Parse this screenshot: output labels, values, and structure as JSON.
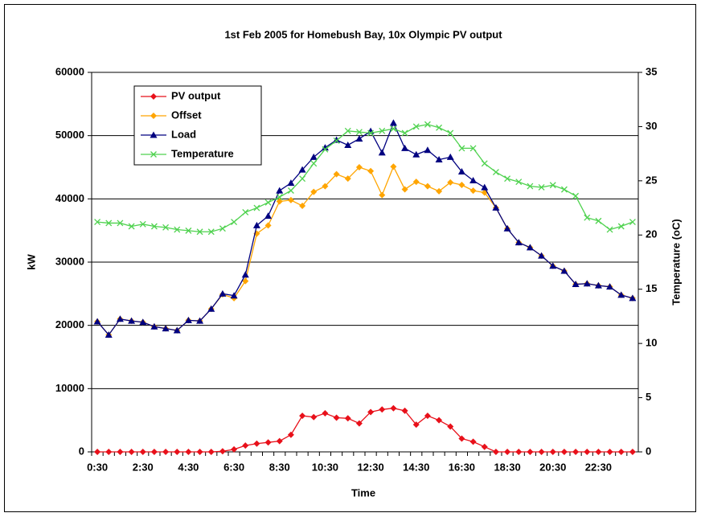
{
  "chart_data": {
    "type": "line",
    "title": "1st Feb 2005 for Homebush Bay, 10x Olympic PV output",
    "x_label": "Time",
    "y_label": "kW",
    "y2_label": "Temperature (oC)",
    "categories": [
      "0:30",
      null,
      null,
      null,
      "2:30",
      null,
      null,
      null,
      "4:30",
      null,
      null,
      null,
      "6:30",
      null,
      null,
      null,
      "8:30",
      null,
      null,
      null,
      "10:30",
      null,
      null,
      null,
      "12:30",
      null,
      null,
      null,
      "14:30",
      null,
      null,
      null,
      "16:30",
      null,
      null,
      null,
      "18:30",
      null,
      null,
      null,
      "20:30",
      null,
      null,
      null,
      "22:30",
      null,
      null,
      null
    ],
    "ylim": [
      0,
      60000
    ],
    "yticks": [
      0,
      10000,
      20000,
      30000,
      40000,
      50000,
      60000
    ],
    "y2lim": [
      0,
      35
    ],
    "y2ticks": [
      0,
      5,
      10,
      15,
      20,
      25,
      30,
      35
    ],
    "grid": true,
    "legend": "upper left",
    "series": [
      {
        "name": "PV output",
        "color": "#e8101a",
        "marker": "diamond",
        "values": [
          0,
          0,
          0,
          0,
          0,
          0,
          0,
          0,
          0,
          0,
          0,
          100,
          400,
          1000,
          1300,
          1500,
          1700,
          2700,
          5700,
          5500,
          6100,
          5400,
          5300,
          4500,
          6300,
          6700,
          6900,
          6500,
          4300,
          5700,
          5000,
          4000,
          2100,
          1600,
          800,
          0,
          0,
          0,
          0,
          0,
          0,
          0,
          0,
          0,
          0,
          0,
          0,
          0
        ]
      },
      {
        "name": "Offset",
        "color": "#ffa500",
        "marker": "diamond",
        "values": [
          20600,
          18500,
          21000,
          20700,
          20500,
          19800,
          19500,
          19200,
          20800,
          20700,
          22600,
          24900,
          24300,
          27000,
          34500,
          35800,
          39600,
          39800,
          38900,
          41100,
          42000,
          43900,
          43200,
          45000,
          44400,
          40600,
          45100,
          41500,
          42700,
          42000,
          41200,
          42600,
          42200,
          41300,
          41000,
          38600,
          35300,
          33100,
          32300,
          31000,
          29400,
          28600,
          26500,
          26600,
          26300,
          26100,
          24800,
          24300
        ]
      },
      {
        "name": "Load",
        "color": "#000080",
        "marker": "triangle",
        "values": [
          20600,
          18500,
          21000,
          20700,
          20500,
          19800,
          19500,
          19200,
          20800,
          20700,
          22600,
          25000,
          24700,
          28000,
          35800,
          37300,
          41300,
          42500,
          44600,
          46600,
          48100,
          49300,
          48500,
          49500,
          50700,
          47300,
          52000,
          48000,
          47000,
          47700,
          46200,
          46600,
          44300,
          42900,
          41800,
          38600,
          35300,
          33100,
          32300,
          31000,
          29400,
          28600,
          26500,
          26600,
          26300,
          26100,
          24800,
          24300
        ]
      },
      {
        "name": "Temperature",
        "color": "#4fd24f",
        "marker": "x",
        "axis": "y2",
        "values": [
          21.2,
          21.1,
          21.1,
          20.8,
          21.0,
          20.8,
          20.7,
          20.5,
          20.4,
          20.3,
          20.3,
          20.6,
          21.2,
          22.1,
          22.5,
          23.0,
          23.5,
          24.1,
          25.2,
          26.6,
          27.9,
          28.7,
          29.6,
          29.5,
          29.4,
          29.6,
          29.8,
          29.4,
          30.0,
          30.2,
          29.9,
          29.4,
          28.0,
          28.0,
          26.6,
          25.8,
          25.2,
          24.9,
          24.5,
          24.4,
          24.6,
          24.2,
          23.6,
          21.6,
          21.3,
          20.5,
          20.8,
          21.2
        ]
      }
    ]
  }
}
